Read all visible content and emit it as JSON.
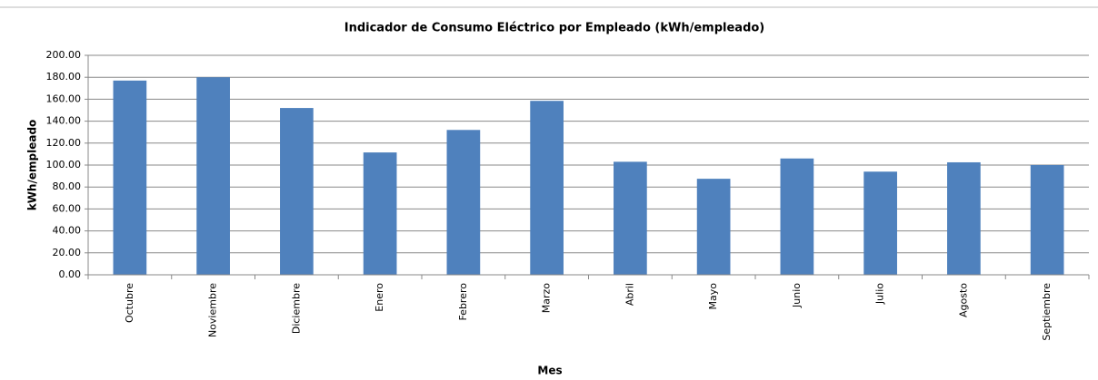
{
  "chart_data": {
    "type": "bar",
    "title": "Indicador de Consumo Eléctrico por Empleado (kWh/empleado)",
    "x_label": "Mes",
    "y_label": "kWh/empleado",
    "categories": [
      "Octubre",
      "Noviembre",
      "Diciembre",
      "Enero",
      "Febrero",
      "Marzo",
      "Abril",
      "Mayo",
      "Junio",
      "Julio",
      "Agosto",
      "Septiembre"
    ],
    "values": [
      177,
      180,
      152,
      111.5,
      132,
      158.5,
      103,
      87.5,
      106,
      94,
      102.5,
      100
    ],
    "color": "#4f81bd",
    "ylim": [
      0,
      200
    ],
    "yticks": [
      {
        "value": 0,
        "label": "0.00"
      },
      {
        "value": 20,
        "label": "20.00"
      },
      {
        "value": 40,
        "label": "40.00"
      },
      {
        "value": 60,
        "label": "60.00"
      },
      {
        "value": 80,
        "label": "80.00"
      },
      {
        "value": 100,
        "label": "100.00"
      },
      {
        "value": 120,
        "label": "120.00"
      },
      {
        "value": 140,
        "label": "140.00"
      },
      {
        "value": 160,
        "label": "160.00"
      },
      {
        "value": 180,
        "label": "180.00"
      },
      {
        "value": 200,
        "label": "200.00"
      }
    ],
    "grid": true
  }
}
